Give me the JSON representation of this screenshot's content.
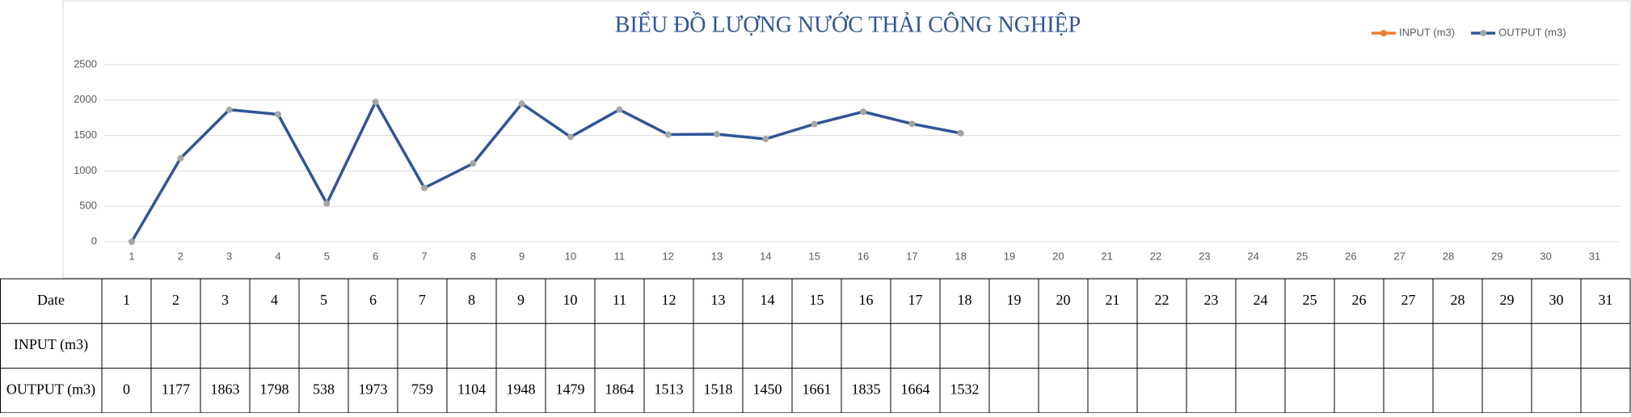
{
  "chart_data": {
    "type": "line",
    "title": "BIỂU ĐỒ LƯỢNG NƯỚC THẢI CÔNG NGHIỆP",
    "categories": [
      1,
      2,
      3,
      4,
      5,
      6,
      7,
      8,
      9,
      10,
      11,
      12,
      13,
      14,
      15,
      16,
      17,
      18,
      19,
      20,
      21,
      22,
      23,
      24,
      25,
      26,
      27,
      28,
      29,
      30,
      31
    ],
    "series": [
      {
        "name": "INPUT (m3)",
        "color": "#ed7d31",
        "marker_color": "#ed7d31",
        "values": [
          null,
          null,
          null,
          null,
          null,
          null,
          null,
          null,
          null,
          null,
          null,
          null,
          null,
          null,
          null,
          null,
          null,
          null,
          null,
          null,
          null,
          null,
          null,
          null,
          null,
          null,
          null,
          null,
          null,
          null,
          null
        ]
      },
      {
        "name": "OUTPUT (m3)",
        "color": "#2f5597",
        "marker_color": "#a5a5a5",
        "values": [
          0,
          1177,
          1863,
          1798,
          538,
          1973,
          759,
          1104,
          1948,
          1479,
          1864,
          1513,
          1518,
          1450,
          1661,
          1835,
          1664,
          1532,
          null,
          null,
          null,
          null,
          null,
          null,
          null,
          null,
          null,
          null,
          null,
          null,
          null
        ]
      }
    ],
    "ylim": [
      0,
      2500
    ],
    "yticks": [
      0,
      500,
      1000,
      1500,
      2000,
      2500
    ],
    "grid": true,
    "legend": "top-right"
  },
  "table": {
    "header": "Date"
  }
}
